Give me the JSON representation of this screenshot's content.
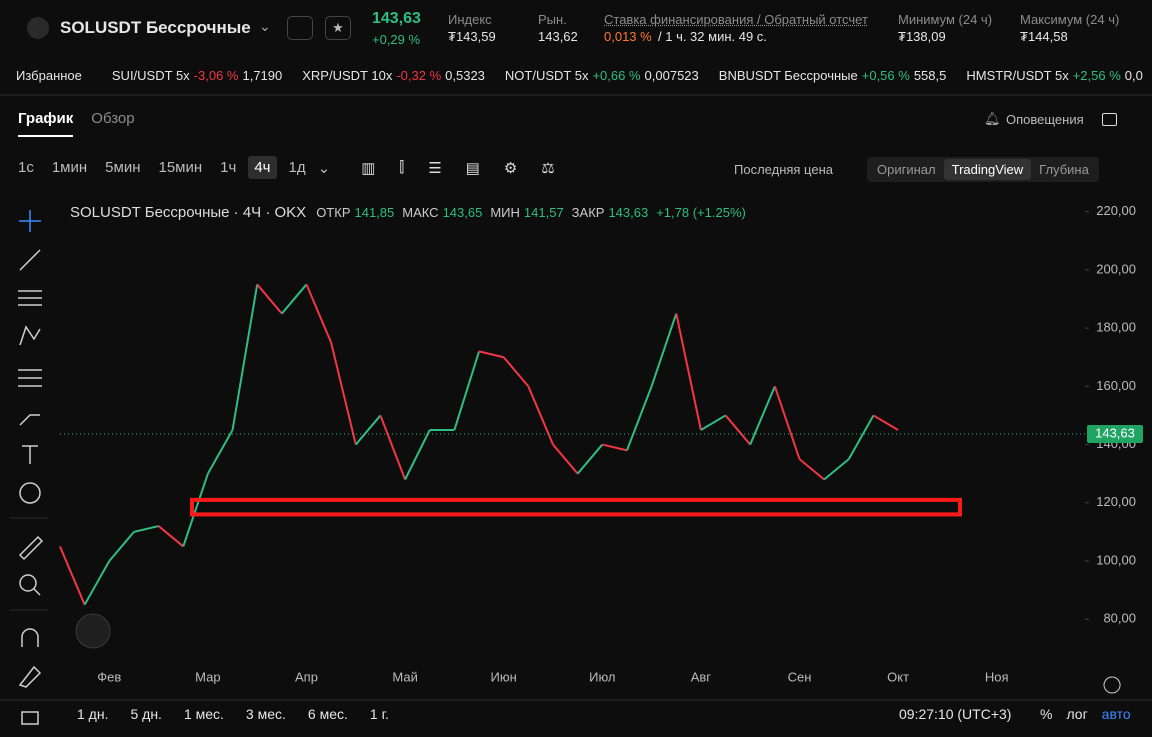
{
  "header": {
    "symbol": "SOLUSDT Бессрочные",
    "price": "143,63",
    "change": "+0,29 %",
    "stats": [
      {
        "label": "Индекс",
        "value": "₮143,59"
      },
      {
        "label": "Рын.",
        "value": "143,62"
      },
      {
        "label": "Ставка финансирования / Обратный отсчет",
        "value": "0,013 %",
        "extra": "/ 1 ч. 32 мин. 49 с."
      },
      {
        "label": "Минимум (24 ч)",
        "value": "₮138,09"
      },
      {
        "label": "Максимум (24 ч)",
        "value": "₮144,58"
      }
    ]
  },
  "favorites": {
    "label": "Избранное",
    "items": [
      {
        "pair": "SUI/USDT 5x",
        "change": "-3,06 %",
        "price": "1,7190"
      },
      {
        "pair": "XRP/USDT 10x",
        "change": "-0,32 %",
        "price": "0,5323"
      },
      {
        "pair": "NOT/USDT 5x",
        "change": "+0,66 %",
        "price": "0,007523"
      },
      {
        "pair": "BNBUSDT Бессрочные",
        "change": "+0,56 %",
        "price": "558,5"
      },
      {
        "pair": "HMSTR/USDT 5x",
        "change": "+2,56 %",
        "price": "0,0"
      }
    ]
  },
  "tabs": [
    "График",
    "Обзор"
  ],
  "alerts": "Оповещения",
  "intervals": [
    "1с",
    "1мин",
    "5мин",
    "15мин",
    "1ч",
    "4ч",
    "1д"
  ],
  "active_interval": 5,
  "price_type": "Последняя цена",
  "views": [
    "Оригинал",
    "TradingView",
    "Глубина"
  ],
  "active_view": 1,
  "legend": {
    "title": "SOLUSDT Бессрочные · 4Ч · OKX",
    "items": [
      {
        "label": "ОТКР",
        "value": "141,85"
      },
      {
        "label": "МАКС",
        "value": "143,65"
      },
      {
        "label": "МИН",
        "value": "141,57"
      },
      {
        "label": "ЗАКР",
        "value": "143,63"
      }
    ],
    "change": "+1,78 (+1.25%)"
  },
  "chart_data": {
    "type": "line",
    "up_color": "#2ebd85",
    "down_color": "#f23645",
    "categories": [
      null,
      null,
      "Фев",
      null,
      null,
      null,
      "Мар",
      null,
      null,
      null,
      "Апр",
      null,
      null,
      null,
      "Май",
      null,
      null,
      null,
      "Июн",
      null,
      null,
      null,
      "Июл",
      null,
      null,
      null,
      "Авг",
      null,
      null,
      null,
      "Сен",
      null,
      null,
      null,
      "Окт",
      null,
      null,
      null,
      "Ноя"
    ],
    "values": [
      105,
      85,
      100,
      110,
      112,
      105,
      130,
      145,
      195,
      185,
      195,
      175,
      140,
      150,
      128,
      145,
      145,
      172,
      170,
      160,
      140,
      130,
      140,
      138,
      160,
      185,
      145,
      150,
      140,
      160,
      135,
      128,
      135,
      150,
      145,
      null,
      null,
      null,
      null
    ],
    "ylim": [
      66,
      224
    ],
    "yticks": [
      {
        "value": 80,
        "label": "80,00"
      },
      {
        "value": 100,
        "label": "100,00"
      },
      {
        "value": 120,
        "label": "120,00"
      },
      {
        "value": 140,
        "label": "140,00"
      },
      {
        "value": 160,
        "label": "160,00"
      },
      {
        "value": 180,
        "label": "180,00"
      },
      {
        "value": 200,
        "label": "200,00"
      },
      {
        "value": 220,
        "label": "220,00"
      }
    ],
    "last_price": {
      "value": 143.63,
      "label": "143,63"
    },
    "zone": [
      116,
      121
    ],
    "zone_color": "#ff1a1a"
  },
  "ranges": [
    "1 дн.",
    "5 дн.",
    "1 мес.",
    "3 мес.",
    "6 мес.",
    "1 г."
  ],
  "time": "09:27:10 (UTC+3)",
  "scale": [
    "%",
    "лог",
    "авто"
  ]
}
